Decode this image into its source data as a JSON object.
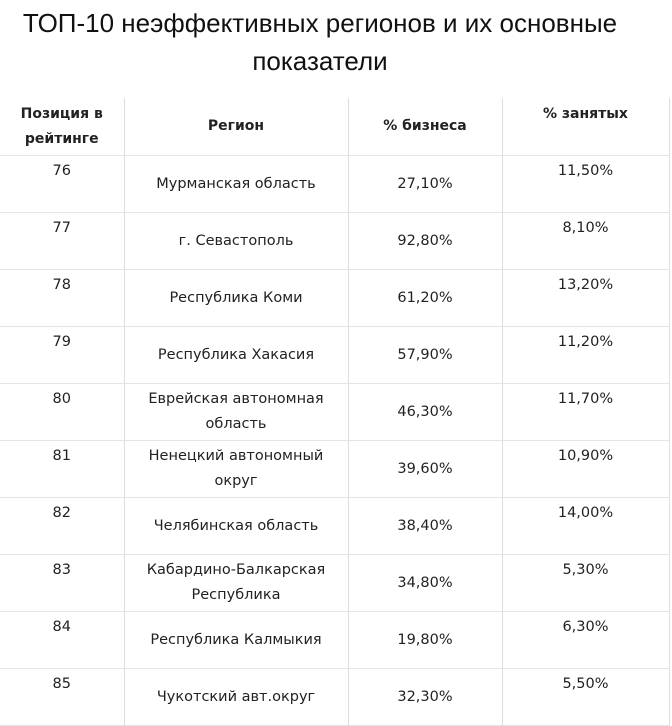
{
  "header": {
    "title": "ТОП-10 неэффективных регионов и их основные показатели"
  },
  "table": {
    "columns": [
      "Позиция в рейтинге",
      "Регион",
      "% бизнеса",
      "% занятых"
    ],
    "rows": [
      [
        "76",
        "Мурманская область",
        "27,10%",
        "11,50%"
      ],
      [
        "77",
        "г. Севастополь",
        "92,80%",
        "8,10%"
      ],
      [
        "78",
        "Республика Коми",
        "61,20%",
        "13,20%"
      ],
      [
        "79",
        "Республика Хакасия",
        "57,90%",
        "11,20%"
      ],
      [
        "80",
        "Еврейская автономная область",
        "46,30%",
        "11,70%"
      ],
      [
        "81",
        "Ненецкий автономный округ",
        "39,60%",
        "10,90%"
      ],
      [
        "82",
        "Челябинская область",
        "38,40%",
        "14,00%"
      ],
      [
        "83",
        "Кабардино-Балкарская Республика",
        "34,80%",
        "5,30%"
      ],
      [
        "84",
        "Республика Калмыкия",
        "19,80%",
        "6,30%"
      ],
      [
        "85",
        "Чукотский авт.округ",
        "32,30%",
        "5,50%"
      ]
    ]
  }
}
